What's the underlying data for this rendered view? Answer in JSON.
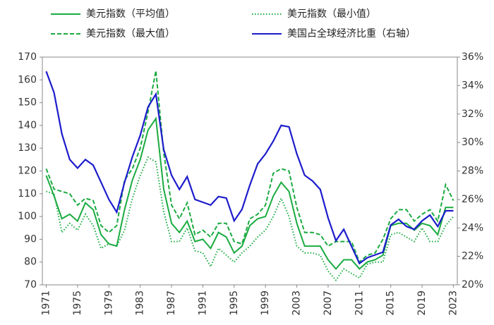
{
  "chart_data": {
    "type": "line",
    "x": [
      1971,
      1972,
      1973,
      1974,
      1975,
      1976,
      1977,
      1978,
      1979,
      1980,
      1981,
      1982,
      1983,
      1984,
      1985,
      1986,
      1987,
      1988,
      1989,
      1990,
      1991,
      1992,
      1993,
      1994,
      1995,
      1996,
      1997,
      1998,
      1999,
      2000,
      2001,
      2002,
      2003,
      2004,
      2005,
      2006,
      2007,
      2008,
      2009,
      2010,
      2011,
      2012,
      2013,
      2014,
      2015,
      2016,
      2017,
      2018,
      2019,
      2020,
      2021,
      2022,
      2023
    ],
    "series": [
      {
        "name": "美元指数（平均值）",
        "color": "#1aab40",
        "style": "solid",
        "values": [
          118,
          109,
          99,
          101,
          98,
          106,
          103,
          92,
          88,
          87,
          103,
          116,
          125,
          138,
          143,
          112,
          97,
          93,
          98,
          89,
          90,
          86,
          93,
          91,
          84,
          87,
          96,
          99,
          100,
          109,
          115,
          111,
          97,
          87,
          87,
          87,
          81,
          77,
          81,
          81,
          77,
          80,
          81,
          83,
          96,
          97,
          97,
          94,
          97,
          96,
          92,
          104,
          104
        ]
      },
      {
        "name": "美元指数（最小值）",
        "color": "#1aab40",
        "style": "dotted",
        "values": [
          111,
          110,
          93,
          97,
          94,
          101,
          96,
          86,
          88,
          87,
          94,
          108,
          118,
          126,
          124,
          102,
          89,
          89,
          95,
          85,
          84,
          78,
          86,
          83,
          80,
          84,
          87,
          91,
          94,
          100,
          108,
          100,
          87,
          84,
          84,
          83,
          76,
          72,
          77,
          75,
          73,
          79,
          80,
          80,
          92,
          93,
          91,
          89,
          95,
          89,
          89,
          96,
          100
        ]
      },
      {
        "name": "美元指数（最大值）",
        "color": "#1aab40",
        "style": "dashed",
        "values": [
          121,
          112,
          111,
          110,
          105,
          108,
          107,
          96,
          93,
          96,
          116,
          121,
          130,
          146,
          164,
          128,
          105,
          99,
          106,
          92,
          94,
          91,
          97,
          97,
          89,
          88,
          99,
          101,
          105,
          119,
          121,
          120,
          104,
          93,
          93,
          92,
          87,
          89,
          89,
          89,
          80,
          83,
          84,
          90,
          99,
          103,
          103,
          98,
          101,
          103,
          98,
          114,
          107
        ]
      },
      {
        "name": "美国占全球经济比重（右轴）",
        "color": "#1c1ccc",
        "style": "solid",
        "axis": "y2",
        "values": [
          35,
          33.5,
          30.6,
          28.8,
          28.2,
          28.8,
          28.4,
          27.2,
          26,
          25.1,
          27.2,
          29,
          30.5,
          32.5,
          33.4,
          29.5,
          27.7,
          26.7,
          27.6,
          26,
          25.8,
          25.6,
          26.2,
          26.1,
          24.5,
          25.3,
          27,
          28.5,
          29.2,
          30.1,
          31.2,
          31.1,
          29.2,
          27.7,
          27.3,
          26.7,
          24.7,
          23.1,
          23.9,
          22.7,
          21.5,
          21.9,
          22.1,
          22.3,
          24.2,
          24.6,
          24.1,
          23.9,
          24.5,
          24.9,
          24.1,
          25.2,
          25.2
        ]
      }
    ],
    "xlim": [
      1970.5,
      2023.5
    ],
    "xticks": [
      1971,
      1975,
      1979,
      1983,
      1987,
      1991,
      1995,
      1999,
      2003,
      2007,
      2011,
      2015,
      2019,
      2023
    ],
    "ylim": [
      70,
      170
    ],
    "yticks": [
      70,
      80,
      90,
      100,
      110,
      120,
      130,
      140,
      150,
      160,
      170
    ],
    "y2lim": [
      20,
      36
    ],
    "y2ticks": [
      {
        "value": 20,
        "label": "20%"
      },
      {
        "value": 22,
        "label": "22%"
      },
      {
        "value": 24,
        "label": "24%"
      },
      {
        "value": 26,
        "label": "26%"
      },
      {
        "value": 28,
        "label": "28%"
      },
      {
        "value": 30,
        "label": "30%"
      },
      {
        "value": 32,
        "label": "32%"
      },
      {
        "value": 34,
        "label": "34%"
      },
      {
        "value": 36,
        "label": "36%"
      }
    ],
    "grid": false
  }
}
